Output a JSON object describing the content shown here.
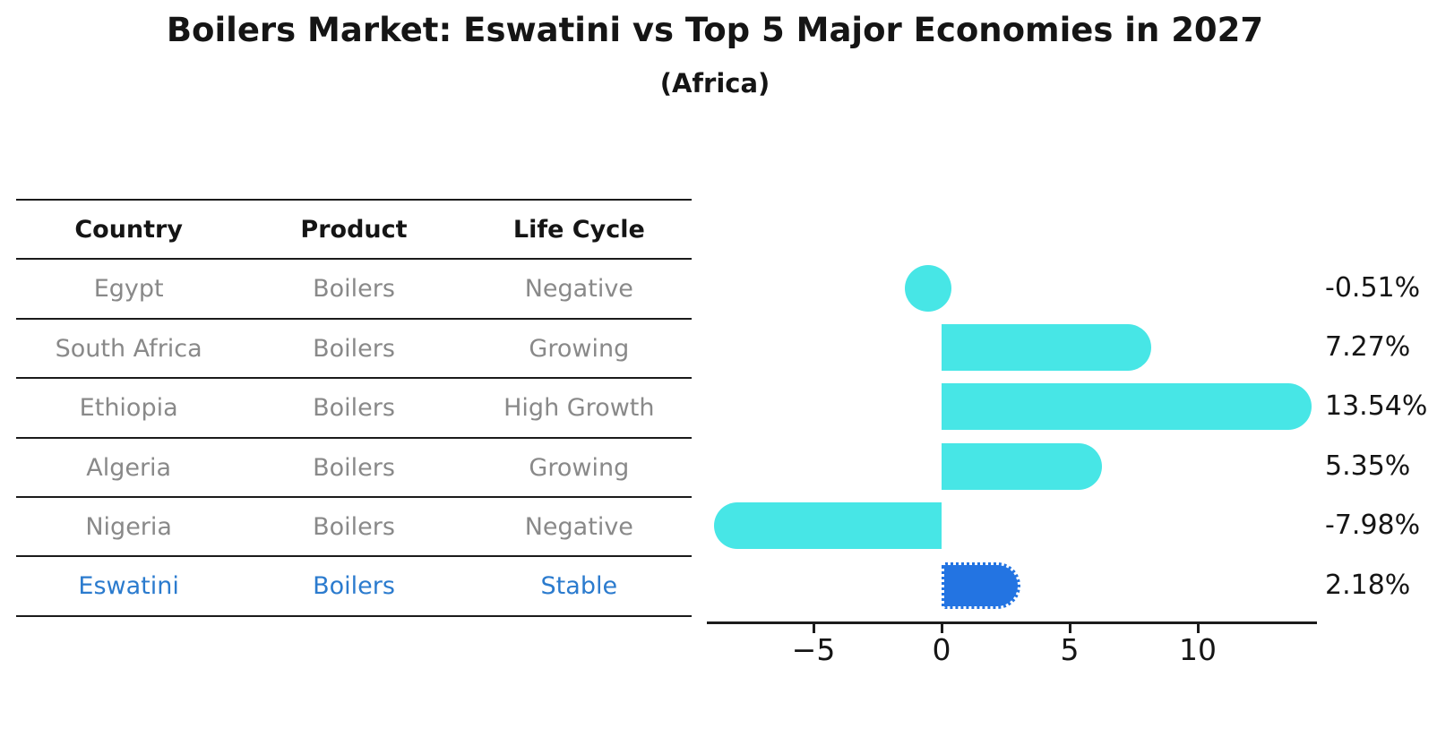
{
  "header": {
    "title": "Boilers Market: Eswatini vs Top 5 Major Economies in 2027",
    "subtitle": "(Africa)"
  },
  "table": {
    "headers": [
      "Country",
      "Product",
      "Life Cycle"
    ],
    "rows": [
      {
        "country": "Egypt",
        "product": "Boilers",
        "life_cycle": "Negative",
        "highlight": false
      },
      {
        "country": "South Africa",
        "product": "Boilers",
        "life_cycle": "Growing",
        "highlight": false
      },
      {
        "country": "Ethiopia",
        "product": "Boilers",
        "life_cycle": "High Growth",
        "highlight": false
      },
      {
        "country": "Algeria",
        "product": "Boilers",
        "life_cycle": "Growing",
        "highlight": false
      },
      {
        "country": "Nigeria",
        "product": "Boilers",
        "life_cycle": "Negative",
        "highlight": false
      },
      {
        "country": "Eswatini",
        "product": "Boilers",
        "life_cycle": "Stable",
        "highlight": true
      }
    ]
  },
  "chart_data": {
    "type": "bar",
    "orientation": "horizontal",
    "title": "Boilers Market: Eswatini vs Top 5 Major Economies in 2027",
    "subtitle": "(Africa)",
    "categories": [
      "Egypt",
      "South Africa",
      "Ethiopia",
      "Algeria",
      "Nigeria",
      "Eswatini"
    ],
    "values": [
      -0.51,
      7.27,
      13.54,
      5.35,
      -7.98,
      2.18
    ],
    "value_labels": [
      "-0.51%",
      "7.27%",
      "13.54%",
      "5.35%",
      "-7.98%",
      "2.18%"
    ],
    "x_ticks": [
      -5,
      0,
      5,
      10
    ],
    "x_tick_labels": [
      "−5",
      "0",
      "5",
      "10"
    ],
    "xlim": [
      -9.2,
      14.65
    ],
    "grid": false,
    "legend": "none",
    "xlabel": "",
    "ylabel": "",
    "highlight_index": 5,
    "bar_shape": "rounded-capsule",
    "highlight_border_style": "dotted"
  },
  "colors": {
    "bar_cyan": "#47e6e6",
    "bar_highlight_blue": "#2374e2",
    "highlight_text_blue": "#2b7bce",
    "table_text_gray": "#898989",
    "text_black": "#151515",
    "line_black": "#1b1b1b",
    "background": "#ffffff"
  }
}
